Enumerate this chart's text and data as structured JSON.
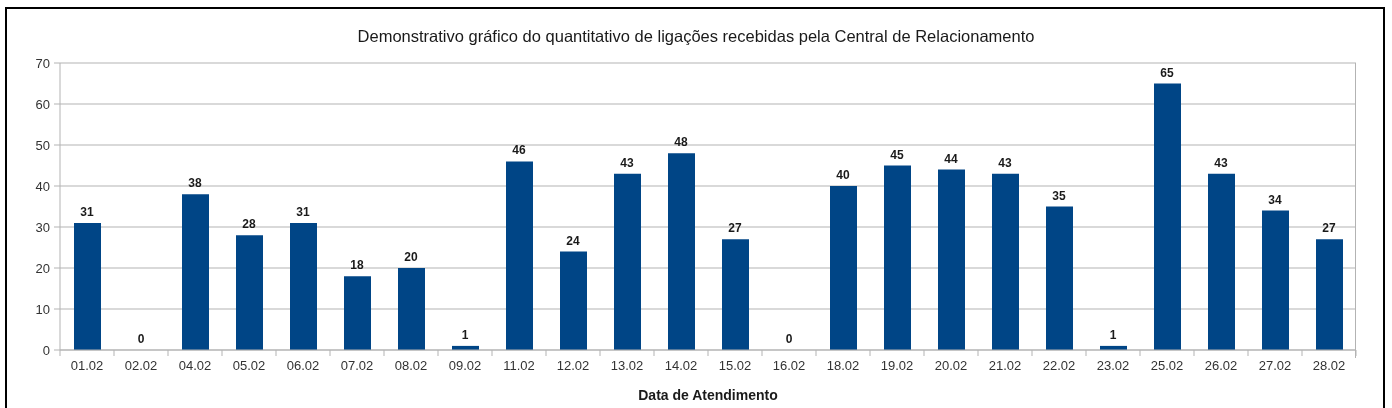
{
  "chart_data": {
    "type": "bar",
    "title": "Demonstrativo gráfico do quantitativo de ligações recebidas pela Central de Relacionamento",
    "xlabel": "Data de Atendimento",
    "categories": [
      "01.02",
      "02.02",
      "04.02",
      "05.02",
      "06.02",
      "07.02",
      "08.02",
      "09.02",
      "11.02",
      "12.02",
      "13.02",
      "14.02",
      "15.02",
      "16.02",
      "18.02",
      "19.02",
      "20.02",
      "21.02",
      "22.02",
      "23.02",
      "25.02",
      "26.02",
      "27.02",
      "28.02"
    ],
    "values": [
      31,
      0,
      38,
      28,
      31,
      18,
      20,
      1,
      46,
      24,
      43,
      48,
      27,
      0,
      40,
      45,
      44,
      43,
      35,
      1,
      65,
      43,
      34,
      27
    ],
    "color": "#004586",
    "ylim": [
      0,
      70
    ],
    "yticks": [
      0,
      10,
      20,
      30,
      40,
      50,
      60,
      70
    ],
    "grid": "y",
    "data_labels": true
  }
}
